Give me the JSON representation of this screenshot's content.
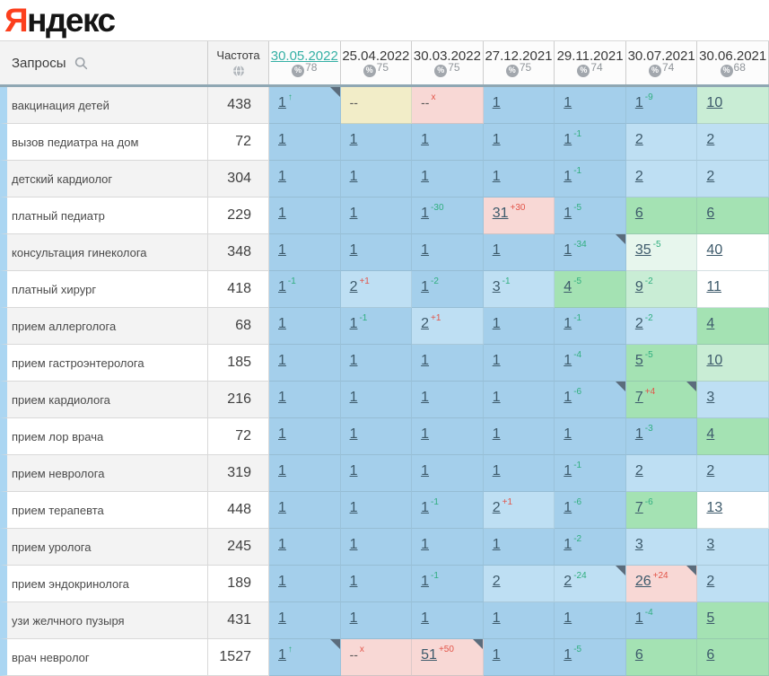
{
  "logo": {
    "first": "Я",
    "rest": "ндекс"
  },
  "header": {
    "queries_label": "Запросы",
    "queries_icon": "search-icon",
    "frequency_label": "Частота",
    "frequency_icon": "globe-icon",
    "visibility_icon": "percent-icon",
    "columns": [
      {
        "date": "30.05.2022",
        "visibility": "78",
        "selected": true
      },
      {
        "date": "25.04.2022",
        "visibility": "75",
        "selected": false
      },
      {
        "date": "30.03.2022",
        "visibility": "75",
        "selected": false
      },
      {
        "date": "27.12.2021",
        "visibility": "75",
        "selected": false
      },
      {
        "date": "29.11.2021",
        "visibility": "74",
        "selected": false
      },
      {
        "date": "30.07.2021",
        "visibility": "74",
        "selected": false
      },
      {
        "date": "30.06.2021",
        "visibility": "68",
        "selected": false
      }
    ]
  },
  "theme": {
    "logo_red": "#fc3f1d",
    "date_selected": "#35b0a5",
    "date_normal": "#383838",
    "sup_good": "#2fae7e",
    "sup_bad": "#e25549",
    "marker": "#5b6c7c",
    "row_stripe": "#abd6f2",
    "cell_colors": {
      "b1": "#a4cfeb",
      "b2": "#bedff3",
      "g1": "#a4e2b3",
      "g2": "#c9edd5",
      "g3": "#e7f6ed",
      "w": "#ffffff",
      "p": "#f8d8d5",
      "c": "#f2edc8"
    }
  },
  "rows": [
    {
      "keyword": "вакцинация детей",
      "frequency": "438",
      "cells": [
        {
          "v": "1",
          "sup": "↑",
          "supType": "good",
          "bg": "b1",
          "marker": true
        },
        {
          "v": "--",
          "bg": "c"
        },
        {
          "v": "--",
          "sup": "x",
          "supType": "bad",
          "bg": "p"
        },
        {
          "v": "1",
          "bg": "b1"
        },
        {
          "v": "1",
          "bg": "b1"
        },
        {
          "v": "1",
          "sup": "-9",
          "supType": "good",
          "bg": "b1"
        },
        {
          "v": "10",
          "bg": "g2"
        }
      ]
    },
    {
      "keyword": "вызов педиатра на дом",
      "frequency": "72",
      "cells": [
        {
          "v": "1",
          "bg": "b1"
        },
        {
          "v": "1",
          "bg": "b1"
        },
        {
          "v": "1",
          "bg": "b1"
        },
        {
          "v": "1",
          "bg": "b1"
        },
        {
          "v": "1",
          "sup": "-1",
          "supType": "good",
          "bg": "b1"
        },
        {
          "v": "2",
          "bg": "b2"
        },
        {
          "v": "2",
          "bg": "b2"
        }
      ]
    },
    {
      "keyword": "детский кардиолог",
      "frequency": "304",
      "cells": [
        {
          "v": "1",
          "bg": "b1"
        },
        {
          "v": "1",
          "bg": "b1"
        },
        {
          "v": "1",
          "bg": "b1"
        },
        {
          "v": "1",
          "bg": "b1"
        },
        {
          "v": "1",
          "sup": "-1",
          "supType": "good",
          "bg": "b1"
        },
        {
          "v": "2",
          "bg": "b2"
        },
        {
          "v": "2",
          "bg": "b2"
        }
      ]
    },
    {
      "keyword": "платный педиатр",
      "frequency": "229",
      "cells": [
        {
          "v": "1",
          "bg": "b1"
        },
        {
          "v": "1",
          "bg": "b1"
        },
        {
          "v": "1",
          "sup": "-30",
          "supType": "good",
          "bg": "b1"
        },
        {
          "v": "31",
          "sup": "+30",
          "supType": "bad",
          "bg": "p"
        },
        {
          "v": "1",
          "sup": "-5",
          "supType": "good",
          "bg": "b1"
        },
        {
          "v": "6",
          "bg": "g1"
        },
        {
          "v": "6",
          "bg": "g1"
        }
      ]
    },
    {
      "keyword": "консультация гинеколога",
      "frequency": "348",
      "cells": [
        {
          "v": "1",
          "bg": "b1"
        },
        {
          "v": "1",
          "bg": "b1"
        },
        {
          "v": "1",
          "bg": "b1"
        },
        {
          "v": "1",
          "bg": "b1"
        },
        {
          "v": "1",
          "sup": "-34",
          "supType": "good",
          "bg": "b1",
          "marker": true
        },
        {
          "v": "35",
          "sup": "-5",
          "supType": "good",
          "bg": "g3"
        },
        {
          "v": "40",
          "bg": "w"
        }
      ]
    },
    {
      "keyword": "платный хирург",
      "frequency": "418",
      "cells": [
        {
          "v": "1",
          "sup": "-1",
          "supType": "good",
          "bg": "b1"
        },
        {
          "v": "2",
          "sup": "+1",
          "supType": "bad",
          "bg": "b2"
        },
        {
          "v": "1",
          "sup": "-2",
          "supType": "good",
          "bg": "b1"
        },
        {
          "v": "3",
          "sup": "-1",
          "supType": "good",
          "bg": "b2"
        },
        {
          "v": "4",
          "sup": "-5",
          "supType": "good",
          "bg": "g1"
        },
        {
          "v": "9",
          "sup": "-2",
          "supType": "good",
          "bg": "g2"
        },
        {
          "v": "11",
          "bg": "w"
        }
      ]
    },
    {
      "keyword": "прием аллерголога",
      "frequency": "68",
      "cells": [
        {
          "v": "1",
          "bg": "b1"
        },
        {
          "v": "1",
          "sup": "-1",
          "supType": "good",
          "bg": "b1"
        },
        {
          "v": "2",
          "sup": "+1",
          "supType": "bad",
          "bg": "b2"
        },
        {
          "v": "1",
          "bg": "b1"
        },
        {
          "v": "1",
          "sup": "-1",
          "supType": "good",
          "bg": "b1"
        },
        {
          "v": "2",
          "sup": "-2",
          "supType": "good",
          "bg": "b2"
        },
        {
          "v": "4",
          "bg": "g1"
        }
      ]
    },
    {
      "keyword": "прием гастроэнтеролога",
      "frequency": "185",
      "cells": [
        {
          "v": "1",
          "bg": "b1"
        },
        {
          "v": "1",
          "bg": "b1"
        },
        {
          "v": "1",
          "bg": "b1"
        },
        {
          "v": "1",
          "bg": "b1"
        },
        {
          "v": "1",
          "sup": "-4",
          "supType": "good",
          "bg": "b1"
        },
        {
          "v": "5",
          "sup": "-5",
          "supType": "good",
          "bg": "g1"
        },
        {
          "v": "10",
          "bg": "g2"
        }
      ]
    },
    {
      "keyword": "прием кардиолога",
      "frequency": "216",
      "cells": [
        {
          "v": "1",
          "bg": "b1"
        },
        {
          "v": "1",
          "bg": "b1"
        },
        {
          "v": "1",
          "bg": "b1"
        },
        {
          "v": "1",
          "bg": "b1"
        },
        {
          "v": "1",
          "sup": "-6",
          "supType": "good",
          "bg": "b1",
          "marker": true
        },
        {
          "v": "7",
          "sup": "+4",
          "supType": "bad",
          "bg": "g1",
          "marker": true
        },
        {
          "v": "3",
          "bg": "b2"
        }
      ]
    },
    {
      "keyword": "прием лор врача",
      "frequency": "72",
      "cells": [
        {
          "v": "1",
          "bg": "b1"
        },
        {
          "v": "1",
          "bg": "b1"
        },
        {
          "v": "1",
          "bg": "b1"
        },
        {
          "v": "1",
          "bg": "b1"
        },
        {
          "v": "1",
          "bg": "b1"
        },
        {
          "v": "1",
          "sup": "-3",
          "supType": "good",
          "bg": "b1"
        },
        {
          "v": "4",
          "bg": "g1"
        }
      ]
    },
    {
      "keyword": "прием невролога",
      "frequency": "319",
      "cells": [
        {
          "v": "1",
          "bg": "b1"
        },
        {
          "v": "1",
          "bg": "b1"
        },
        {
          "v": "1",
          "bg": "b1"
        },
        {
          "v": "1",
          "bg": "b1"
        },
        {
          "v": "1",
          "sup": "-1",
          "supType": "good",
          "bg": "b1"
        },
        {
          "v": "2",
          "bg": "b2"
        },
        {
          "v": "2",
          "bg": "b2"
        }
      ]
    },
    {
      "keyword": "прием терапевта",
      "frequency": "448",
      "cells": [
        {
          "v": "1",
          "bg": "b1"
        },
        {
          "v": "1",
          "bg": "b1"
        },
        {
          "v": "1",
          "sup": "-1",
          "supType": "good",
          "bg": "b1"
        },
        {
          "v": "2",
          "sup": "+1",
          "supType": "bad",
          "bg": "b2"
        },
        {
          "v": "1",
          "sup": "-6",
          "supType": "good",
          "bg": "b1"
        },
        {
          "v": "7",
          "sup": "-6",
          "supType": "good",
          "bg": "g1"
        },
        {
          "v": "13",
          "bg": "w"
        }
      ]
    },
    {
      "keyword": "прием уролога",
      "frequency": "245",
      "cells": [
        {
          "v": "1",
          "bg": "b1"
        },
        {
          "v": "1",
          "bg": "b1"
        },
        {
          "v": "1",
          "bg": "b1"
        },
        {
          "v": "1",
          "bg": "b1"
        },
        {
          "v": "1",
          "sup": "-2",
          "supType": "good",
          "bg": "b1"
        },
        {
          "v": "3",
          "bg": "b2"
        },
        {
          "v": "3",
          "bg": "b2"
        }
      ]
    },
    {
      "keyword": "прием эндокринолога",
      "frequency": "189",
      "cells": [
        {
          "v": "1",
          "bg": "b1"
        },
        {
          "v": "1",
          "bg": "b1"
        },
        {
          "v": "1",
          "sup": "-1",
          "supType": "good",
          "bg": "b1"
        },
        {
          "v": "2",
          "bg": "b2"
        },
        {
          "v": "2",
          "sup": "-24",
          "supType": "good",
          "bg": "b2",
          "marker": true
        },
        {
          "v": "26",
          "sup": "+24",
          "supType": "bad",
          "bg": "p",
          "marker": true
        },
        {
          "v": "2",
          "bg": "b2"
        }
      ]
    },
    {
      "keyword": "узи желчного пузыря",
      "frequency": "431",
      "cells": [
        {
          "v": "1",
          "bg": "b1"
        },
        {
          "v": "1",
          "bg": "b1"
        },
        {
          "v": "1",
          "bg": "b1"
        },
        {
          "v": "1",
          "bg": "b1"
        },
        {
          "v": "1",
          "bg": "b1"
        },
        {
          "v": "1",
          "sup": "-4",
          "supType": "good",
          "bg": "b1"
        },
        {
          "v": "5",
          "bg": "g1"
        }
      ]
    },
    {
      "keyword": "врач невролог",
      "frequency": "1527",
      "cells": [
        {
          "v": "1",
          "sup": "↑",
          "supType": "good",
          "bg": "b1",
          "marker": true
        },
        {
          "v": "--",
          "sup": "x",
          "supType": "bad",
          "bg": "p"
        },
        {
          "v": "51",
          "sup": "+50",
          "supType": "bad",
          "bg": "p",
          "marker": true
        },
        {
          "v": "1",
          "bg": "b1"
        },
        {
          "v": "1",
          "sup": "-5",
          "supType": "good",
          "bg": "b1"
        },
        {
          "v": "6",
          "bg": "g1"
        },
        {
          "v": "6",
          "bg": "g1"
        }
      ]
    }
  ]
}
